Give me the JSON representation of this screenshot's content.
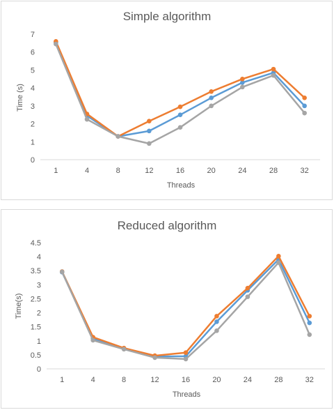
{
  "chart_data": [
    {
      "type": "line",
      "title": "Simple algorithm",
      "xlabel": "Threads",
      "ylabel": "Time (s)",
      "categories": [
        "1",
        "4",
        "8",
        "12",
        "16",
        "20",
        "24",
        "28",
        "32"
      ],
      "yticks": [
        "0",
        "1",
        "2",
        "3",
        "4",
        "5",
        "6",
        "7"
      ],
      "ylim": [
        0,
        7
      ],
      "grid": false,
      "legend": "none",
      "series": [
        {
          "color": "#5b9bd5",
          "values": [
            6.55,
            2.45,
            1.3,
            1.6,
            2.5,
            3.45,
            4.3,
            4.85,
            3.0
          ]
        },
        {
          "color": "#ed7d31",
          "values": [
            6.6,
            2.55,
            1.3,
            2.15,
            2.95,
            3.8,
            4.5,
            5.05,
            3.45
          ]
        },
        {
          "color": "#a5a5a5",
          "values": [
            6.45,
            2.25,
            1.3,
            0.9,
            1.8,
            3.0,
            4.05,
            4.7,
            2.6
          ]
        }
      ]
    },
    {
      "type": "line",
      "title": "Reduced algorithm",
      "xlabel": "Threads",
      "ylabel": "Time(s)",
      "categories": [
        "1",
        "4",
        "8",
        "12",
        "16",
        "20",
        "24",
        "28",
        "32"
      ],
      "yticks": [
        "0",
        "0.5",
        "1",
        "1.5",
        "2",
        "2.5",
        "3",
        "3.5",
        "4",
        "4.5"
      ],
      "ylim": [
        0,
        4.5
      ],
      "grid": false,
      "legend": "none",
      "series": [
        {
          "color": "#5b9bd5",
          "values": [
            3.45,
            1.08,
            0.72,
            0.44,
            0.45,
            1.68,
            2.8,
            3.9,
            1.64
          ]
        },
        {
          "color": "#ed7d31",
          "values": [
            3.47,
            1.13,
            0.74,
            0.47,
            0.58,
            1.88,
            2.88,
            4.02,
            1.88
          ]
        },
        {
          "color": "#a5a5a5",
          "values": [
            3.46,
            1.02,
            0.7,
            0.4,
            0.35,
            1.36,
            2.57,
            3.79,
            1.22
          ]
        }
      ]
    }
  ]
}
